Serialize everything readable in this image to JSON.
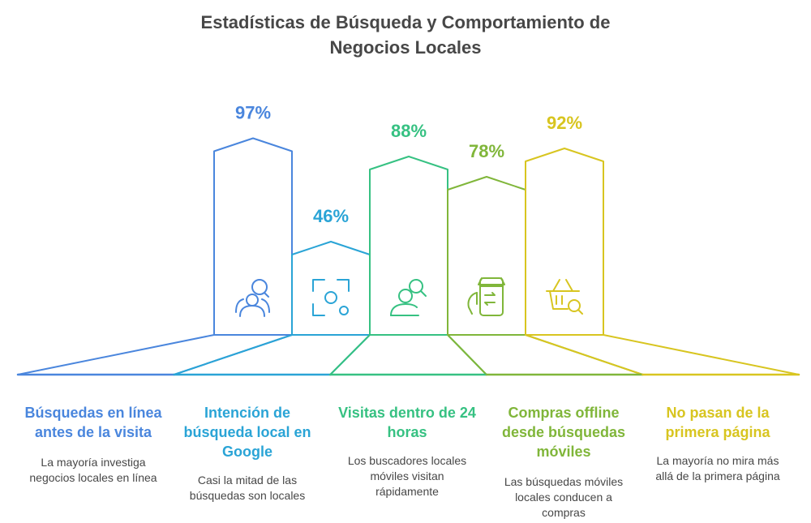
{
  "title_lines": [
    "Estadísticas de Búsqueda y Comportamiento de",
    "Negocios Locales"
  ],
  "chart_data": {
    "type": "bar",
    "title": "Estadísticas de Búsqueda y Comportamiento de Negocios Locales",
    "unit": "%",
    "categories": [
      "Búsquedas en línea antes de la visita",
      "Intención de búsqueda local en Google",
      "Visitas dentro de 24 horas",
      "Compras offline desde búsquedas móviles",
      "No pasan de la primera página"
    ],
    "values": [
      97,
      46,
      88,
      78,
      92
    ],
    "value_labels": [
      "97%",
      "46%",
      "88%",
      "78%",
      "92%"
    ],
    "descriptions": [
      "La mayoría investiga negocios locales en línea",
      "Casi la mitad de las búsquedas son locales",
      "Los buscadores locales móviles visitan rápidamente",
      "Las búsquedas móviles locales conducen a compras",
      "La mayoría no mira más allá de la primera página"
    ],
    "colors": [
      "#4a86dd",
      "#2aa4d6",
      "#36c182",
      "#80b63a",
      "#d8c520"
    ],
    "icons": [
      "user-group-search-icon",
      "focus-scan-icon",
      "user-search-icon",
      "mobile-shop-icon",
      "basket-search-icon"
    ],
    "legend": "none",
    "grid": false
  }
}
